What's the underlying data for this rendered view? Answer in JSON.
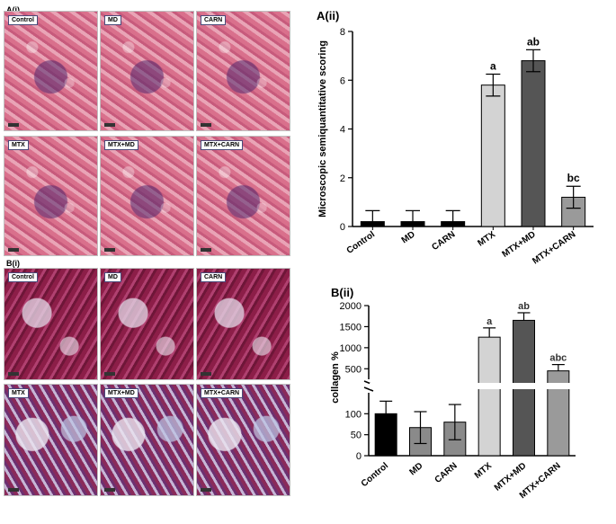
{
  "figure_labels": {
    "a_i": "A(i)",
    "b_i": "B(i)"
  },
  "micro_a": {
    "panels": [
      "Control",
      "MD",
      "CARN",
      "MTX",
      "MTX+MD",
      "MTX+CARN"
    ]
  },
  "micro_b": {
    "panels": [
      "Control",
      "MD",
      "CARN",
      "MTX",
      "MTX+MD",
      "MTX+CARN"
    ]
  },
  "chart_data": [
    {
      "type": "bar",
      "panel_label": "A(ii)",
      "ylabel": "Microscopic semiquantitative scoring",
      "categories": [
        "Control",
        "MD",
        "CARN",
        "MTX",
        "MTX+MD",
        "MTX+CARN"
      ],
      "values": [
        0.2,
        0.2,
        0.2,
        5.8,
        6.8,
        1.2
      ],
      "errors": [
        0.45,
        0.45,
        0.45,
        0.45,
        0.45,
        0.45
      ],
      "annotations": [
        "",
        "",
        "",
        "a",
        "ab",
        "bc"
      ],
      "colors": [
        "#000000",
        "#000000",
        "#000000",
        "#d3d3d3",
        "#555555",
        "#9a9a9a"
      ],
      "ylim": [
        0,
        8
      ],
      "yticks": [
        "0",
        "2",
        "4",
        "6",
        "8"
      ]
    },
    {
      "type": "bar",
      "panel_label": "B(ii)",
      "ylabel": "collagen %",
      "categories": [
        "Control",
        "MD",
        "CARN",
        "MTX",
        "MTX+MD",
        "MTX+CARN"
      ],
      "values": [
        100,
        67,
        80,
        1250,
        1650,
        450
      ],
      "errors": [
        [
          null,
          30
        ],
        [
          null,
          38
        ],
        [
          null,
          42
        ],
        [
          220,
          null
        ],
        [
          180,
          null
        ],
        [
          150,
          null
        ]
      ],
      "annotations": [
        "",
        "",
        "",
        "a",
        "ab",
        "abc"
      ],
      "colors": [
        "#000000",
        "#8a8a8a",
        "#8a8a8a",
        "#d3d3d3",
        "#555555",
        "#9a9a9a"
      ],
      "broken_axis": {
        "lower_range": [
          0,
          150
        ],
        "upper_range": [
          250,
          2000
        ],
        "lower_ticks": [
          "0",
          "50",
          "100"
        ],
        "upper_ticks": [
          "500",
          "1000",
          "1500",
          "2000"
        ]
      }
    }
  ]
}
